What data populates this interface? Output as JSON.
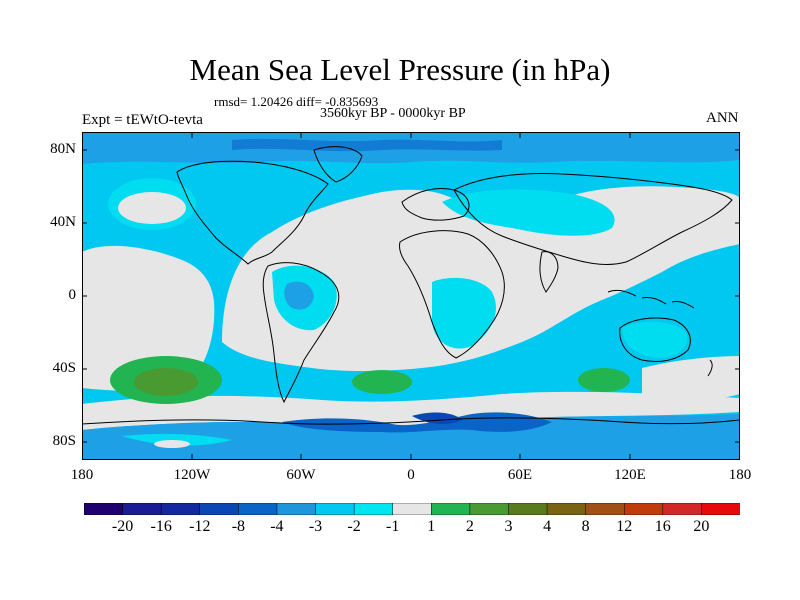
{
  "title": "Mean Sea Level Pressure (in hPa)",
  "stats": "rmsd= 1.20426 diff= -0.835693",
  "period": "3560kyr BP - 0000kyr BP",
  "experiment": "Expt = tEWtO-tevta",
  "season": "ANN",
  "map": {
    "projection": "equirectangular",
    "lon_range": [
      -180,
      180
    ],
    "lat_range": [
      -90,
      90
    ],
    "lat_ticks": [
      "80N",
      "40N",
      "0",
      "40S",
      "80S"
    ],
    "lon_ticks": [
      "180",
      "120W",
      "60W",
      "0",
      "60E",
      "120E",
      "180"
    ],
    "colors": {
      "background_near_zero": "#e6e6e6",
      "light_cyan": "#00dcf0",
      "cyan": "#00c8f0",
      "medium_blue": "#1ea0e6",
      "dark_blue": "#0050be",
      "light_green": "#22b450",
      "green": "#4aa03c",
      "coastline": "#000000"
    },
    "features": [
      {
        "label": "North Pacific high",
        "bin": "-1 to -2"
      },
      {
        "label": "South Pacific anomaly",
        "bin": "1 to 2"
      },
      {
        "label": "South Atlantic anomaly",
        "bin": "1 to 2"
      },
      {
        "label": "South Indian anomaly",
        "bin": "1 to 2"
      },
      {
        "label": "Southern Ocean trough",
        "bin": "-2 to -4"
      }
    ]
  },
  "colorbar": {
    "labels": [
      "-20",
      "-16",
      "-12",
      "-8",
      "-4",
      "-3",
      "-2",
      "-1",
      "1",
      "2",
      "3",
      "4",
      "8",
      "12",
      "16",
      "20"
    ],
    "colors": [
      "#1e006e",
      "#1c1c96",
      "#1428a0",
      "#0a46b4",
      "#0a64c8",
      "#1e96dc",
      "#00c8f0",
      "#00e6f0",
      "#e6e6e6",
      "#22b450",
      "#4a9a32",
      "#5a7a1e",
      "#7a6414",
      "#a05014",
      "#c03c0a",
      "#d22828",
      "#e60a0a"
    ]
  }
}
